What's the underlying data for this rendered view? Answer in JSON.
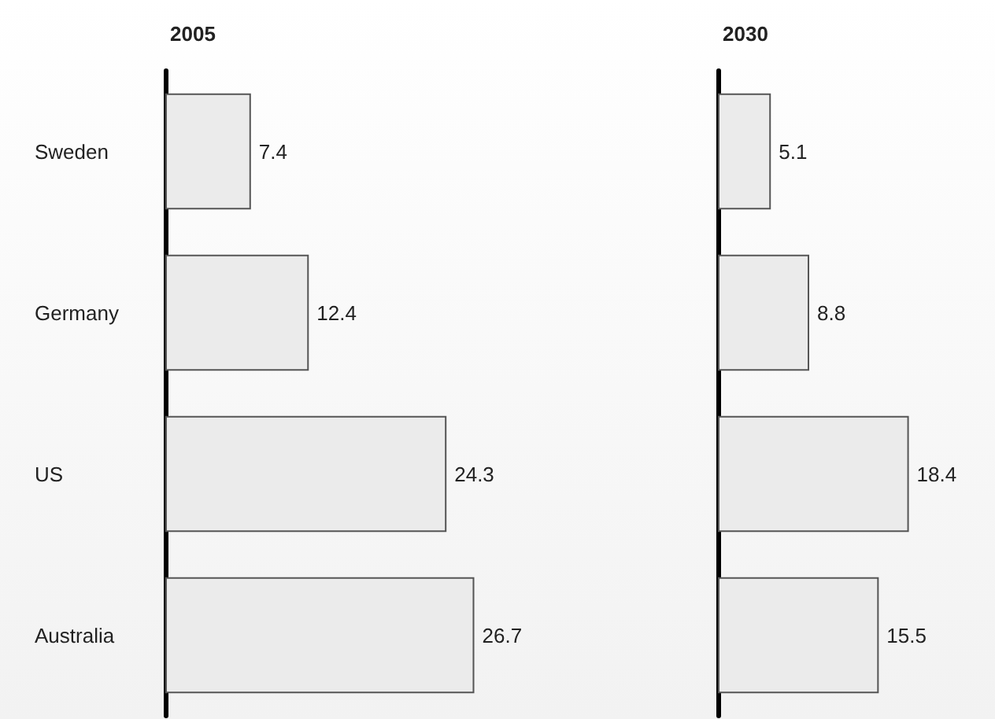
{
  "chart_data": [
    {
      "type": "bar",
      "title": "2005",
      "orientation": "horizontal",
      "categories": [
        "Sweden",
        "Germany",
        "US",
        "Australia"
      ],
      "values": [
        7.4,
        12.4,
        24.3,
        26.7
      ],
      "color": "#ebebeb",
      "data_labels": true,
      "tick_labels": "y"
    },
    {
      "type": "bar",
      "title": "2030",
      "orientation": "horizontal",
      "categories": [
        null,
        null,
        null,
        null
      ],
      "values": [
        5.1,
        8.8,
        18.4,
        15.5
      ],
      "color": "#ebebeb",
      "data_labels": true,
      "tick_labels": false
    }
  ]
}
